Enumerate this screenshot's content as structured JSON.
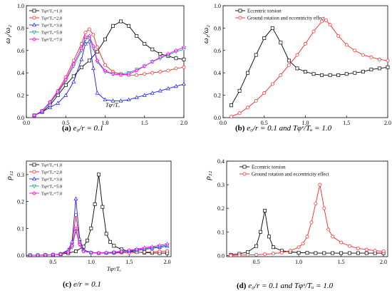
{
  "colors": {
    "black": "#000000",
    "red": "#ff2020",
    "blue": "#1a1aff",
    "teal": "#119a8a",
    "magenta": "#ff00ff"
  },
  "chart_data": [
    {
      "type": "line",
      "ylabel": "ω₁/ω₂",
      "inner_xlabel": "Tφᵉ/Tᵤ",
      "caption_letter": "(a)",
      "caption_rest": "e₀/r = 0.1",
      "xlim": [
        0.0,
        2.0
      ],
      "ylim": [
        0.0,
        1.0
      ],
      "xticks": [
        "0.0",
        "0.5",
        "1.0",
        "1.5",
        "2.0"
      ],
      "yticks": [
        "0.0",
        "0.2",
        "0.4",
        "0.6",
        "0.8",
        "1.0"
      ],
      "legend_position": "top-left",
      "series": [
        {
          "name": "Tφᵉ/Tᵤ=1.0",
          "color": "#000000",
          "marker": "square",
          "x": [
            0.1,
            0.2,
            0.3,
            0.4,
            0.5,
            0.6,
            0.7,
            0.8,
            0.9,
            1.0,
            1.1,
            1.2,
            1.3,
            1.4,
            1.5,
            1.6,
            1.7,
            1.8,
            1.9,
            2.0
          ],
          "y": [
            0.02,
            0.05,
            0.11,
            0.2,
            0.29,
            0.37,
            0.45,
            0.51,
            0.59,
            0.7,
            0.82,
            0.86,
            0.82,
            0.73,
            0.66,
            0.61,
            0.57,
            0.55,
            0.53,
            0.52
          ]
        },
        {
          "name": "Tφᵉ/Tᵤ=2.0",
          "color": "#ff2020",
          "marker": "circle",
          "x": [
            0.1,
            0.2,
            0.3,
            0.4,
            0.5,
            0.6,
            0.7,
            0.75,
            0.8,
            0.85,
            0.9,
            1.0,
            1.1,
            1.2,
            1.3,
            1.4,
            1.5,
            1.6,
            1.7,
            1.8,
            1.9,
            2.0
          ],
          "y": [
            0.02,
            0.06,
            0.14,
            0.24,
            0.36,
            0.51,
            0.66,
            0.76,
            0.79,
            0.74,
            0.63,
            0.47,
            0.41,
            0.39,
            0.38,
            0.38,
            0.39,
            0.4,
            0.41,
            0.42,
            0.44,
            0.45
          ]
        },
        {
          "name": "Tφᵉ/Tᵤ=3.0",
          "color": "#1a1aff",
          "marker": "triangle",
          "x": [
            0.1,
            0.2,
            0.3,
            0.4,
            0.5,
            0.6,
            0.7,
            0.75,
            0.8,
            0.85,
            0.9,
            1.0,
            1.1,
            1.2,
            1.3,
            1.4,
            1.5,
            1.6,
            1.7,
            1.8,
            1.9,
            2.0
          ],
          "y": [
            0.02,
            0.05,
            0.09,
            0.13,
            0.2,
            0.32,
            0.52,
            0.66,
            0.68,
            0.44,
            0.22,
            0.16,
            0.15,
            0.15,
            0.16,
            0.18,
            0.2,
            0.22,
            0.24,
            0.26,
            0.28,
            0.3
          ]
        },
        {
          "name": "Tφᵉ/Tᵤ=5.0",
          "color": "#119a8a",
          "marker": "triangle-down",
          "x": [
            0.1,
            0.2,
            0.3,
            0.4,
            0.5,
            0.6,
            0.7,
            0.75,
            0.8,
            0.85,
            0.9,
            1.0,
            1.1,
            1.2,
            1.3,
            1.4,
            1.5,
            1.6,
            1.7,
            1.8,
            1.9,
            2.0
          ],
          "y": [
            0.02,
            0.06,
            0.13,
            0.22,
            0.33,
            0.46,
            0.6,
            0.7,
            0.71,
            0.62,
            0.5,
            0.41,
            0.39,
            0.39,
            0.4,
            0.43,
            0.46,
            0.5,
            0.53,
            0.56,
            0.59,
            0.61
          ]
        },
        {
          "name": "Tφᵉ/Tᵤ=7.0",
          "color": "#ff00ff",
          "marker": "star",
          "x": [
            0.1,
            0.2,
            0.3,
            0.4,
            0.5,
            0.6,
            0.7,
            0.75,
            0.8,
            0.85,
            0.9,
            1.0,
            1.1,
            1.2,
            1.3,
            1.4,
            1.5,
            1.6,
            1.7,
            1.8,
            1.9,
            2.0
          ],
          "y": [
            0.02,
            0.06,
            0.14,
            0.23,
            0.34,
            0.48,
            0.62,
            0.72,
            0.73,
            0.64,
            0.51,
            0.42,
            0.39,
            0.38,
            0.39,
            0.42,
            0.46,
            0.5,
            0.54,
            0.57,
            0.6,
            0.63
          ]
        }
      ]
    },
    {
      "type": "line",
      "ylabel": "ω₁/ω₂",
      "inner_xlabel": "",
      "caption_letter": "(b)",
      "caption_rest": "e₀/r = 0.1 and Tφᵉ/Tᵤ = 1.0",
      "xlim": [
        0.0,
        2.0
      ],
      "ylim": [
        0.0,
        1.0
      ],
      "xticks": [
        "0.0",
        "0.5",
        "1.0",
        "1.5",
        "2.0"
      ],
      "yticks": [
        "0.0",
        "0.2",
        "0.4",
        "0.6",
        "0.8",
        "1.0"
      ],
      "legend_position": "top-left",
      "series": [
        {
          "name": "Eccentric torsion",
          "color": "#000000",
          "marker": "square",
          "x": [
            0.1,
            0.2,
            0.3,
            0.4,
            0.5,
            0.6,
            0.7,
            0.8,
            0.9,
            1.0,
            1.1,
            1.2,
            1.3,
            1.4,
            1.5,
            1.6,
            1.7,
            1.8,
            1.9,
            2.0
          ],
          "y": [
            0.11,
            0.24,
            0.4,
            0.56,
            0.71,
            0.8,
            0.67,
            0.51,
            0.44,
            0.41,
            0.39,
            0.38,
            0.38,
            0.38,
            0.39,
            0.4,
            0.41,
            0.43,
            0.44,
            0.45
          ]
        },
        {
          "name": "Ground rotation and eccentricity effect",
          "color": "#ff2020",
          "marker": "circle",
          "x": [
            0.1,
            0.2,
            0.3,
            0.4,
            0.5,
            0.6,
            0.7,
            0.8,
            0.9,
            1.0,
            1.1,
            1.2,
            1.25,
            1.3,
            1.4,
            1.5,
            1.6,
            1.7,
            1.8,
            1.9,
            2.0
          ],
          "y": [
            0.01,
            0.04,
            0.09,
            0.15,
            0.22,
            0.3,
            0.38,
            0.47,
            0.56,
            0.66,
            0.77,
            0.86,
            0.87,
            0.83,
            0.73,
            0.65,
            0.6,
            0.56,
            0.54,
            0.52,
            0.51
          ]
        }
      ]
    },
    {
      "type": "line",
      "ylabel": "ρ₁₂",
      "inner_xlabel": "Tφᵉ/Tᵤ",
      "caption_letter": "(c)",
      "caption_rest": "e/r = 0.1",
      "xlim": [
        0.15,
        2.05
      ],
      "ylim": [
        -0.005,
        0.35
      ],
      "xticks": [
        "0.5",
        "1.0",
        "1.5",
        "2.0"
      ],
      "yticks": [
        "0.0",
        "0.1",
        "0.2",
        "0.3"
      ],
      "legend_position": "top-left",
      "series": [
        {
          "name": "Tφᵉ/Tᵤ=1.0",
          "color": "#000000",
          "marker": "square",
          "x": [
            0.2,
            0.3,
            0.4,
            0.5,
            0.6,
            0.7,
            0.8,
            0.9,
            0.95,
            1.0,
            1.05,
            1.1,
            1.15,
            1.2,
            1.25,
            1.3,
            1.4,
            1.5,
            1.6,
            1.7,
            1.8,
            1.9,
            2.0
          ],
          "y": [
            0.0,
            0.0,
            0.001,
            0.002,
            0.004,
            0.008,
            0.015,
            0.032,
            0.055,
            0.1,
            0.19,
            0.3,
            0.18,
            0.08,
            0.05,
            0.035,
            0.022,
            0.015,
            0.012,
            0.01,
            0.009,
            0.008,
            0.008
          ]
        },
        {
          "name": "Tφᵉ/Tᵤ=2.0",
          "color": "#ff2020",
          "marker": "circle",
          "x": [
            0.2,
            0.3,
            0.4,
            0.5,
            0.6,
            0.7,
            0.75,
            0.8,
            0.85,
            0.9,
            1.0,
            1.1,
            1.2,
            1.3,
            1.4,
            1.5,
            1.6,
            1.7,
            1.8,
            1.9,
            2.0
          ],
          "y": [
            0.0,
            0.0,
            0.001,
            0.002,
            0.005,
            0.015,
            0.04,
            0.15,
            0.05,
            0.02,
            0.01,
            0.008,
            0.008,
            0.008,
            0.009,
            0.01,
            0.011,
            0.012,
            0.013,
            0.015,
            0.016
          ]
        },
        {
          "name": "Tφᵉ/Tᵤ=3.0",
          "color": "#1a1aff",
          "marker": "triangle",
          "x": [
            0.2,
            0.3,
            0.4,
            0.5,
            0.6,
            0.7,
            0.75,
            0.8,
            0.85,
            0.9,
            1.0,
            1.1,
            1.2,
            1.3,
            1.4,
            1.5,
            1.6,
            1.7,
            1.8,
            1.9,
            2.0
          ],
          "y": [
            0.0,
            0.0,
            0.001,
            0.002,
            0.005,
            0.02,
            0.05,
            0.21,
            0.06,
            0.02,
            0.01,
            0.008,
            0.009,
            0.01,
            0.012,
            0.015,
            0.018,
            0.022,
            0.026,
            0.03,
            0.034
          ]
        },
        {
          "name": "Tφᵉ/Tᵤ=5.0",
          "color": "#119a8a",
          "marker": "triangle-down",
          "x": [
            0.2,
            0.3,
            0.4,
            0.5,
            0.6,
            0.7,
            0.75,
            0.8,
            0.85,
            0.9,
            1.0,
            1.1,
            1.2,
            1.3,
            1.4,
            1.5,
            1.6,
            1.7,
            1.8,
            1.9,
            2.0
          ],
          "y": [
            0.0,
            0.0,
            0.001,
            0.002,
            0.004,
            0.012,
            0.03,
            0.09,
            0.04,
            0.015,
            0.01,
            0.008,
            0.009,
            0.011,
            0.014,
            0.017,
            0.021,
            0.025,
            0.029,
            0.033,
            0.038
          ]
        },
        {
          "name": "Tφᵉ/Tᵤ=7.0",
          "color": "#ff00ff",
          "marker": "star",
          "x": [
            0.2,
            0.3,
            0.4,
            0.5,
            0.6,
            0.7,
            0.75,
            0.8,
            0.85,
            0.9,
            1.0,
            1.1,
            1.2,
            1.3,
            1.4,
            1.5,
            1.6,
            1.7,
            1.8,
            1.9,
            2.0
          ],
          "y": [
            0.0,
            0.0,
            0.001,
            0.002,
            0.004,
            0.012,
            0.035,
            0.1,
            0.04,
            0.015,
            0.01,
            0.009,
            0.01,
            0.012,
            0.015,
            0.019,
            0.023,
            0.028,
            0.032,
            0.037,
            0.042
          ]
        }
      ]
    },
    {
      "type": "line",
      "ylabel": "ρ₁₂",
      "inner_xlabel": "",
      "caption_letter": "(d)",
      "caption_rest": "e₀/r = 0.1 and Tφᵉ/Tᵤ = 1.0",
      "xlim": [
        0.15,
        2.05
      ],
      "ylim": [
        -0.005,
        0.4
      ],
      "xticks": [
        "0.5",
        "1.0",
        "1.5",
        "2.0"
      ],
      "yticks": [
        "0.0",
        "0.1",
        "0.2",
        "0.3",
        "0.4"
      ],
      "legend_position": "top-left",
      "series": [
        {
          "name": "Eccentric torsion",
          "color": "#000000",
          "marker": "square",
          "x": [
            0.2,
            0.3,
            0.4,
            0.5,
            0.55,
            0.6,
            0.65,
            0.7,
            0.8,
            0.9,
            1.0,
            1.1,
            1.2,
            1.3,
            1.4,
            1.5,
            1.6,
            1.7,
            1.8,
            1.9,
            2.0
          ],
          "y": [
            0.003,
            0.007,
            0.015,
            0.04,
            0.1,
            0.19,
            0.08,
            0.035,
            0.02,
            0.015,
            0.012,
            0.011,
            0.01,
            0.01,
            0.01,
            0.01,
            0.01,
            0.01,
            0.01,
            0.01,
            0.01
          ]
        },
        {
          "name": "Ground rotation and eccentricity effect",
          "color": "#ff2020",
          "marker": "circle",
          "x": [
            0.2,
            0.3,
            0.4,
            0.5,
            0.6,
            0.7,
            0.8,
            0.9,
            1.0,
            1.05,
            1.1,
            1.15,
            1.2,
            1.25,
            1.3,
            1.35,
            1.4,
            1.5,
            1.6,
            1.7,
            1.8,
            1.9,
            2.0
          ],
          "y": [
            0.0,
            0.001,
            0.002,
            0.003,
            0.005,
            0.008,
            0.012,
            0.02,
            0.035,
            0.05,
            0.08,
            0.14,
            0.22,
            0.3,
            0.2,
            0.11,
            0.08,
            0.055,
            0.04,
            0.03,
            0.025,
            0.02,
            0.018
          ]
        }
      ]
    }
  ]
}
